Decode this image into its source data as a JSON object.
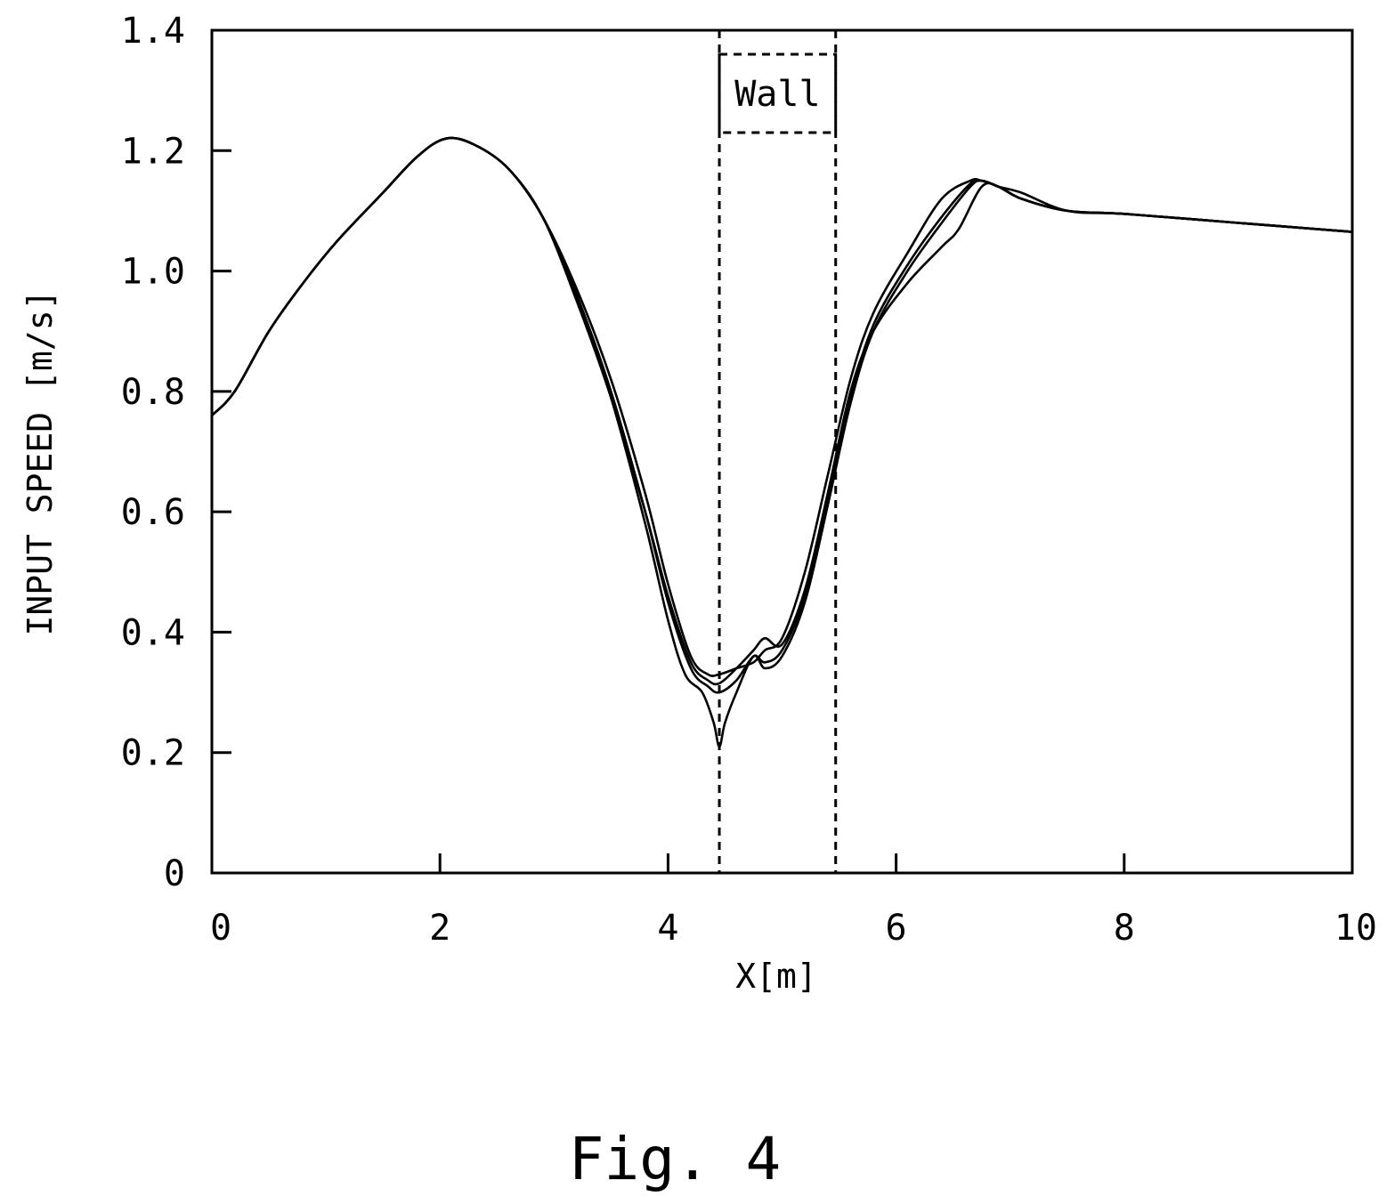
{
  "chart_data": {
    "type": "line",
    "xlabel": "X[m]",
    "ylabel": "INPUT SPEED [m/s]",
    "xlim": [
      0,
      10
    ],
    "ylim": [
      0,
      1.4
    ],
    "x_ticks": [
      "0",
      "2",
      "4",
      "6",
      "8",
      "10"
    ],
    "y_ticks": [
      "0",
      "0.2",
      "0.4",
      "0.6",
      "0.8",
      "1.0",
      "1.2",
      "1.4"
    ],
    "grid": false,
    "line_color": "#000000",
    "wall": {
      "label": "Wall",
      "x_range": [
        4.45,
        5.47
      ],
      "label_box_y": [
        1.23,
        1.36
      ]
    },
    "series": [
      {
        "x": [
          0.0,
          0.2,
          0.5,
          0.8,
          1.1,
          1.5,
          1.8,
          2.05,
          2.3,
          2.6,
          2.9,
          3.2,
          3.5,
          3.8,
          4.0,
          4.2,
          4.35,
          4.45,
          4.6,
          4.75,
          4.85,
          5.0,
          5.2,
          5.4,
          5.6,
          5.8,
          6.1,
          6.4,
          6.65,
          6.75,
          6.9,
          7.1,
          7.5,
          8.0,
          9.0,
          10.0
        ],
        "y": [
          0.76,
          0.8,
          0.9,
          0.98,
          1.05,
          1.13,
          1.19,
          1.22,
          1.21,
          1.17,
          1.09,
          0.97,
          0.82,
          0.63,
          0.48,
          0.36,
          0.33,
          0.33,
          0.34,
          0.35,
          0.37,
          0.39,
          0.5,
          0.66,
          0.82,
          0.93,
          1.03,
          1.12,
          1.15,
          1.15,
          1.14,
          1.12,
          1.1,
          1.095,
          1.08,
          1.065
        ]
      },
      {
        "x": [
          0.0,
          0.2,
          0.5,
          0.8,
          1.1,
          1.5,
          1.8,
          2.05,
          2.3,
          2.6,
          2.9,
          3.2,
          3.5,
          3.8,
          4.0,
          4.2,
          4.35,
          4.45,
          4.6,
          4.75,
          4.85,
          5.0,
          5.2,
          5.4,
          5.6,
          5.8,
          6.1,
          6.4,
          6.65,
          6.75,
          6.9,
          7.1,
          7.5,
          8.0,
          9.0,
          10.0
        ],
        "y": [
          0.76,
          0.8,
          0.9,
          0.98,
          1.05,
          1.13,
          1.19,
          1.22,
          1.21,
          1.17,
          1.09,
          0.96,
          0.8,
          0.6,
          0.45,
          0.34,
          0.31,
          0.3,
          0.32,
          0.36,
          0.35,
          0.37,
          0.46,
          0.62,
          0.79,
          0.91,
          1.01,
          1.09,
          1.145,
          1.15,
          1.14,
          1.12,
          1.1,
          1.095,
          1.08,
          1.065
        ]
      },
      {
        "x": [
          0.0,
          0.2,
          0.5,
          0.8,
          1.1,
          1.5,
          1.8,
          2.05,
          2.3,
          2.6,
          2.9,
          3.2,
          3.5,
          3.8,
          4.0,
          4.15,
          4.3,
          4.4,
          4.45,
          4.5,
          4.6,
          4.75,
          4.85,
          5.0,
          5.2,
          5.4,
          5.6,
          5.8,
          6.1,
          6.4,
          6.65,
          6.75,
          6.9,
          7.1,
          7.5,
          8.0,
          9.0,
          10.0
        ],
        "y": [
          0.76,
          0.8,
          0.9,
          0.98,
          1.05,
          1.13,
          1.19,
          1.22,
          1.21,
          1.17,
          1.09,
          0.96,
          0.79,
          0.58,
          0.42,
          0.33,
          0.3,
          0.25,
          0.21,
          0.25,
          0.3,
          0.36,
          0.34,
          0.36,
          0.45,
          0.61,
          0.78,
          0.9,
          1.0,
          1.08,
          1.14,
          1.15,
          1.14,
          1.13,
          1.1,
          1.095,
          1.08,
          1.065
        ]
      },
      {
        "x": [
          0.0,
          0.2,
          0.5,
          0.8,
          1.1,
          1.5,
          1.8,
          2.05,
          2.3,
          2.6,
          2.9,
          3.2,
          3.5,
          3.8,
          4.0,
          4.2,
          4.35,
          4.45,
          4.6,
          4.75,
          4.85,
          5.0,
          5.2,
          5.4,
          5.6,
          5.8,
          6.1,
          6.4,
          6.55,
          6.75,
          6.9,
          7.1,
          7.5,
          8.0,
          9.0,
          10.0
        ],
        "y": [
          0.76,
          0.8,
          0.9,
          0.98,
          1.05,
          1.13,
          1.19,
          1.22,
          1.21,
          1.17,
          1.09,
          0.95,
          0.79,
          0.6,
          0.46,
          0.35,
          0.32,
          0.315,
          0.34,
          0.37,
          0.39,
          0.38,
          0.47,
          0.63,
          0.8,
          0.9,
          0.98,
          1.04,
          1.07,
          1.14,
          1.14,
          1.12,
          1.1,
          1.095,
          1.08,
          1.065
        ]
      }
    ]
  },
  "caption": "Fig. 4"
}
